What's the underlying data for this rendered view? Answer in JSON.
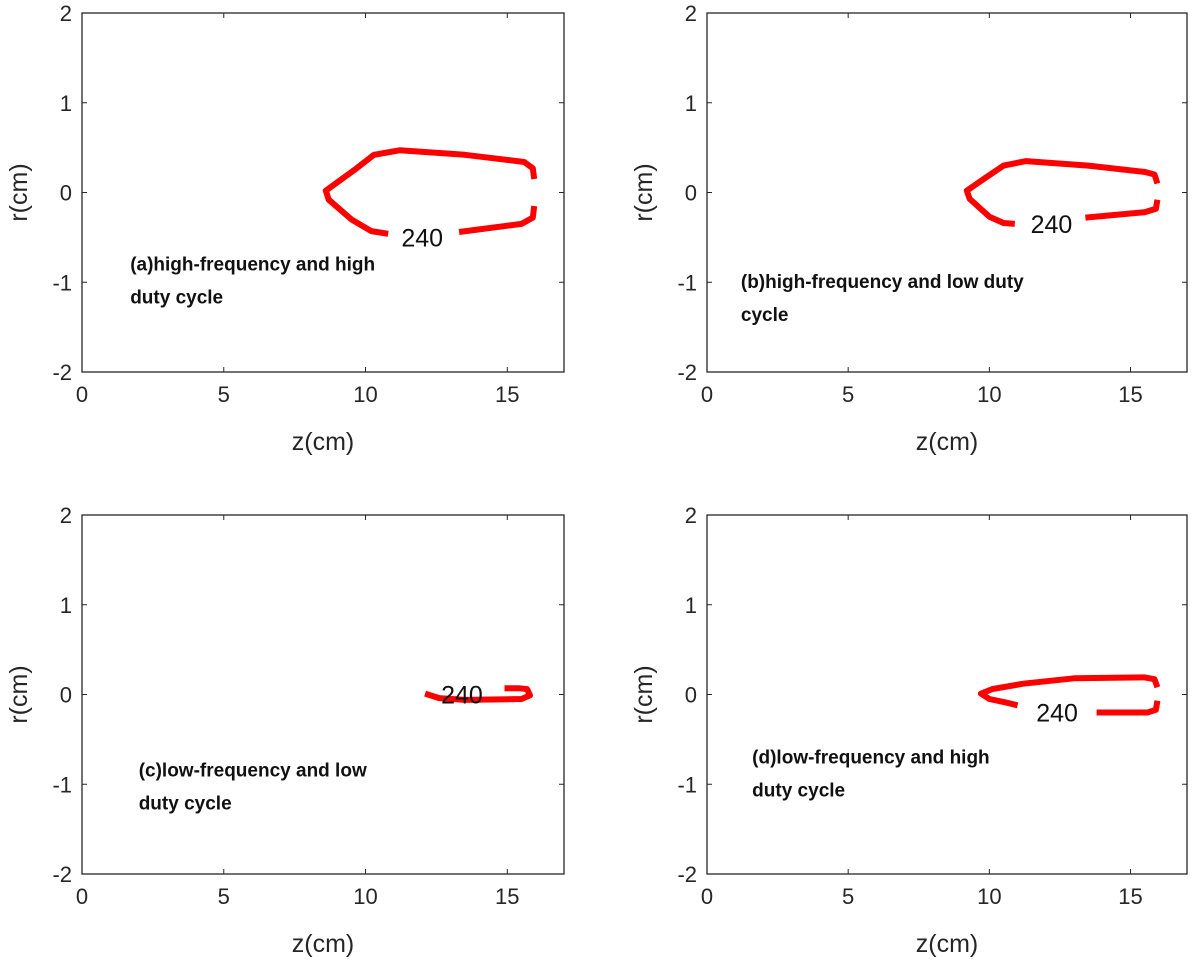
{
  "chart_data": [
    {
      "type": "line",
      "panel": "a",
      "xlabel": "z(cm)",
      "ylabel": "r(cm)",
      "xlim": [
        0,
        17
      ],
      "ylim": [
        -2,
        2
      ],
      "xticks": [
        0,
        5,
        10,
        15
      ],
      "yticks": [
        -2,
        -1,
        0,
        1,
        2
      ],
      "annotation": [
        "(a)high-frequency and high",
        "duty cycle"
      ],
      "annotation_pos": [
        1.7,
        -1.0
      ],
      "contour_level": "240",
      "contour_label_pos": [
        12.0,
        -0.5
      ],
      "color": "#ff0000",
      "segments": [
        [
          [
            15.95,
            0.15
          ],
          [
            15.9,
            0.27
          ],
          [
            15.6,
            0.34
          ],
          [
            13.5,
            0.42
          ],
          [
            11.2,
            0.47
          ],
          [
            10.3,
            0.42
          ],
          [
            9.6,
            0.25
          ],
          [
            8.6,
            0.02
          ],
          [
            8.7,
            -0.08
          ],
          [
            9.5,
            -0.3
          ],
          [
            10.2,
            -0.43
          ],
          [
            10.8,
            -0.46
          ]
        ],
        [
          [
            13.3,
            -0.44
          ],
          [
            15.5,
            -0.35
          ],
          [
            15.9,
            -0.28
          ],
          [
            15.95,
            -0.15
          ]
        ]
      ]
    },
    {
      "type": "line",
      "panel": "b",
      "xlabel": "z(cm)",
      "ylabel": "r(cm)",
      "xlim": [
        0,
        17
      ],
      "ylim": [
        -2,
        2
      ],
      "xticks": [
        0,
        5,
        10,
        15
      ],
      "yticks": [
        -2,
        -1,
        0,
        1,
        2
      ],
      "annotation": [
        "(b)high-frequency and low  duty",
        "cycle"
      ],
      "annotation_pos": [
        1.2,
        -1.2
      ],
      "contour_level": "240",
      "contour_label_pos": [
        12.2,
        -0.35
      ],
      "color": "#ff0000",
      "segments": [
        [
          [
            15.95,
            0.1
          ],
          [
            15.85,
            0.2
          ],
          [
            15.5,
            0.23
          ],
          [
            13.5,
            0.3
          ],
          [
            11.3,
            0.35
          ],
          [
            10.5,
            0.3
          ],
          [
            9.8,
            0.15
          ],
          [
            9.2,
            0.02
          ],
          [
            9.3,
            -0.07
          ],
          [
            10.0,
            -0.27
          ],
          [
            10.5,
            -0.34
          ],
          [
            10.9,
            -0.35
          ]
        ],
        [
          [
            13.4,
            -0.28
          ],
          [
            15.5,
            -0.22
          ],
          [
            15.9,
            -0.18
          ],
          [
            15.95,
            -0.08
          ]
        ]
      ]
    },
    {
      "type": "line",
      "panel": "c",
      "xlabel": "z(cm)",
      "ylabel": "r(cm)",
      "xlim": [
        0,
        17
      ],
      "ylim": [
        -2,
        2
      ],
      "xticks": [
        0,
        5,
        10,
        15
      ],
      "yticks": [
        -2,
        -1,
        0,
        1,
        2
      ],
      "annotation": [
        "(c)low-frequency and low",
        "duty cycle"
      ],
      "annotation_pos": [
        2.0,
        -1.05
      ],
      "contour_level": "240",
      "contour_label_pos": [
        13.4,
        0.0
      ],
      "color": "#ff0000",
      "segments": [
        [
          [
            12.1,
            0.01
          ],
          [
            12.6,
            -0.04
          ],
          [
            13.5,
            -0.06
          ],
          [
            15.5,
            -0.05
          ],
          [
            15.8,
            -0.01
          ],
          [
            15.7,
            0.06
          ],
          [
            15.4,
            0.07
          ],
          [
            14.9,
            0.07
          ]
        ]
      ]
    },
    {
      "type": "line",
      "panel": "d",
      "xlabel": "z(cm)",
      "ylabel": "r(cm)",
      "xlim": [
        0,
        17
      ],
      "ylim": [
        -2,
        2
      ],
      "xticks": [
        0,
        5,
        10,
        15
      ],
      "yticks": [
        -2,
        -1,
        0,
        1,
        2
      ],
      "annotation": [
        "(d)low-frequency and high",
        "duty cycle"
      ],
      "annotation_pos": [
        1.6,
        -0.9
      ],
      "contour_level": "240",
      "contour_label_pos": [
        12.4,
        -0.2
      ],
      "color": "#ff0000",
      "segments": [
        [
          [
            15.95,
            0.08
          ],
          [
            15.85,
            0.17
          ],
          [
            15.5,
            0.19
          ],
          [
            13.0,
            0.18
          ],
          [
            11.2,
            0.12
          ],
          [
            10.1,
            0.06
          ],
          [
            9.7,
            0.01
          ],
          [
            10.0,
            -0.05
          ],
          [
            10.6,
            -0.09
          ],
          [
            11.0,
            -0.12
          ]
        ],
        [
          [
            13.8,
            -0.2
          ],
          [
            15.6,
            -0.2
          ],
          [
            15.9,
            -0.17
          ],
          [
            15.95,
            -0.07
          ]
        ]
      ]
    }
  ]
}
